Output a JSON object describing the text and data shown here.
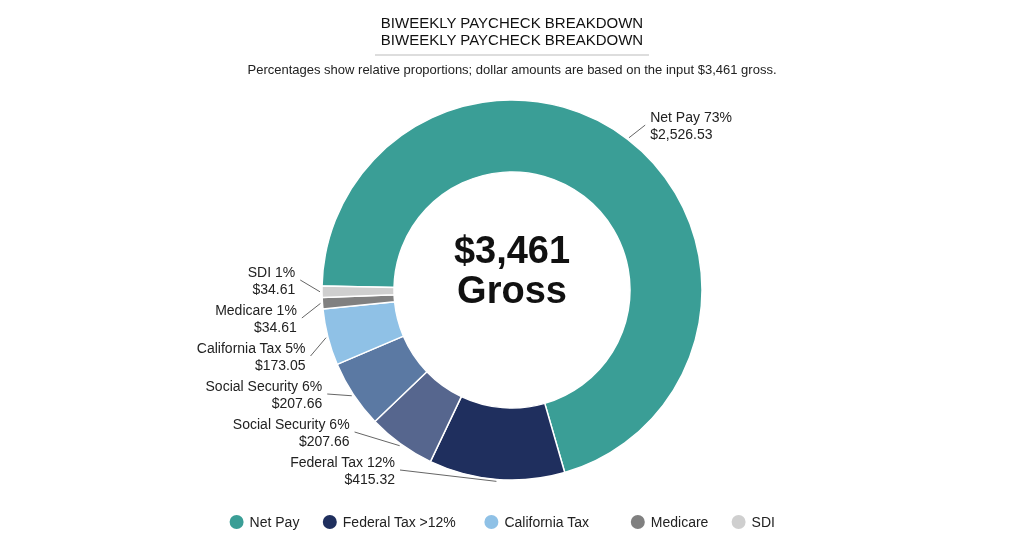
{
  "chart_data": {
    "type": "donut",
    "title": "BIWEEKLY PAYCHECK BREAKDOWN\nBIWEEKLY PAYCHECK BREAKDOWN",
    "subtitle": "Percentages show relative proportions; dollar amounts are based on the input $3,461 gross.",
    "annotations": [
      "$3,461\nGross"
    ],
    "categories": [
      "Net Pay",
      "Federal Tax >12%",
      null,
      null,
      "California Tax",
      "Medicare",
      "SDI"
    ],
    "values": [
      2526.53,
      415.32,
      207.66,
      207.66,
      173.05,
      34.61,
      34.61
    ],
    "value_labels": [
      "Net Pay 73%\n$2,526.53",
      "Federal Tax 12%\n$415.32",
      "Social Security 6%\n$207.66",
      "Social Security 6%\n$207.66",
      "California Tax 5%\n$173.05",
      "Medicare 1%\n$34.61",
      "SDI 1%\n$34.61"
    ],
    "colors": [
      "#3a9e96",
      "#1f2f5e",
      "#56668e",
      "#5b79a3",
      "#8fc1e6",
      "#808080",
      "#cfcfcf"
    ],
    "legend": "bottom"
  }
}
